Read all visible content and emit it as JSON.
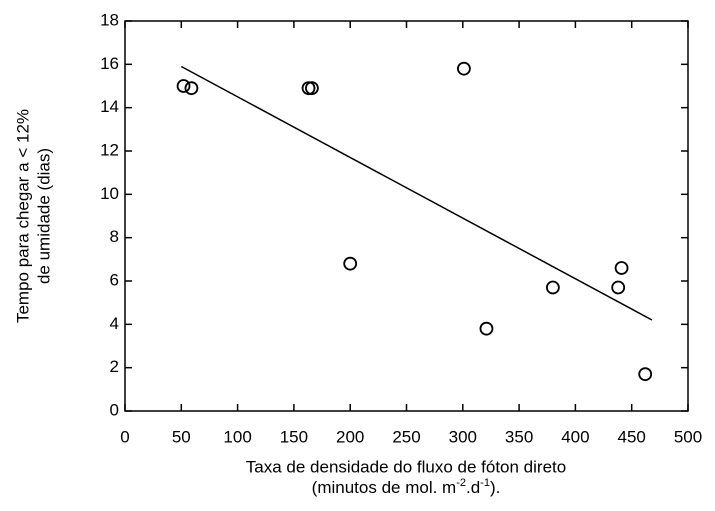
{
  "chart_data": {
    "type": "scatter",
    "x_label": "Taxa de densidade do fluxo de fóton direto",
    "x_label_2": [
      "(minutos de mol. m",
      "-2",
      ".d",
      "-1",
      ")."
    ],
    "y_label": [
      "Tempo para chegar a < 12%",
      "de umidade (dias)"
    ],
    "x": [
      52,
      59,
      163,
      166,
      200,
      301,
      321,
      380,
      438,
      441,
      462
    ],
    "values": [
      15,
      14.9,
      14.9,
      14.9,
      6.8,
      15.8,
      3.8,
      5.7,
      5.7,
      6.6,
      1.7
    ],
    "fit": {
      "x": [
        50,
        468
      ],
      "y": [
        15.9,
        4.2
      ]
    },
    "color": "#000000",
    "xlim": [
      0,
      500
    ],
    "xticks": [
      0,
      50,
      100,
      150,
      200,
      250,
      300,
      350,
      400,
      450,
      500
    ],
    "ylim": [
      0,
      18
    ],
    "yticks": [
      0,
      2,
      4,
      6,
      8,
      10,
      12,
      14,
      16,
      18
    ]
  }
}
